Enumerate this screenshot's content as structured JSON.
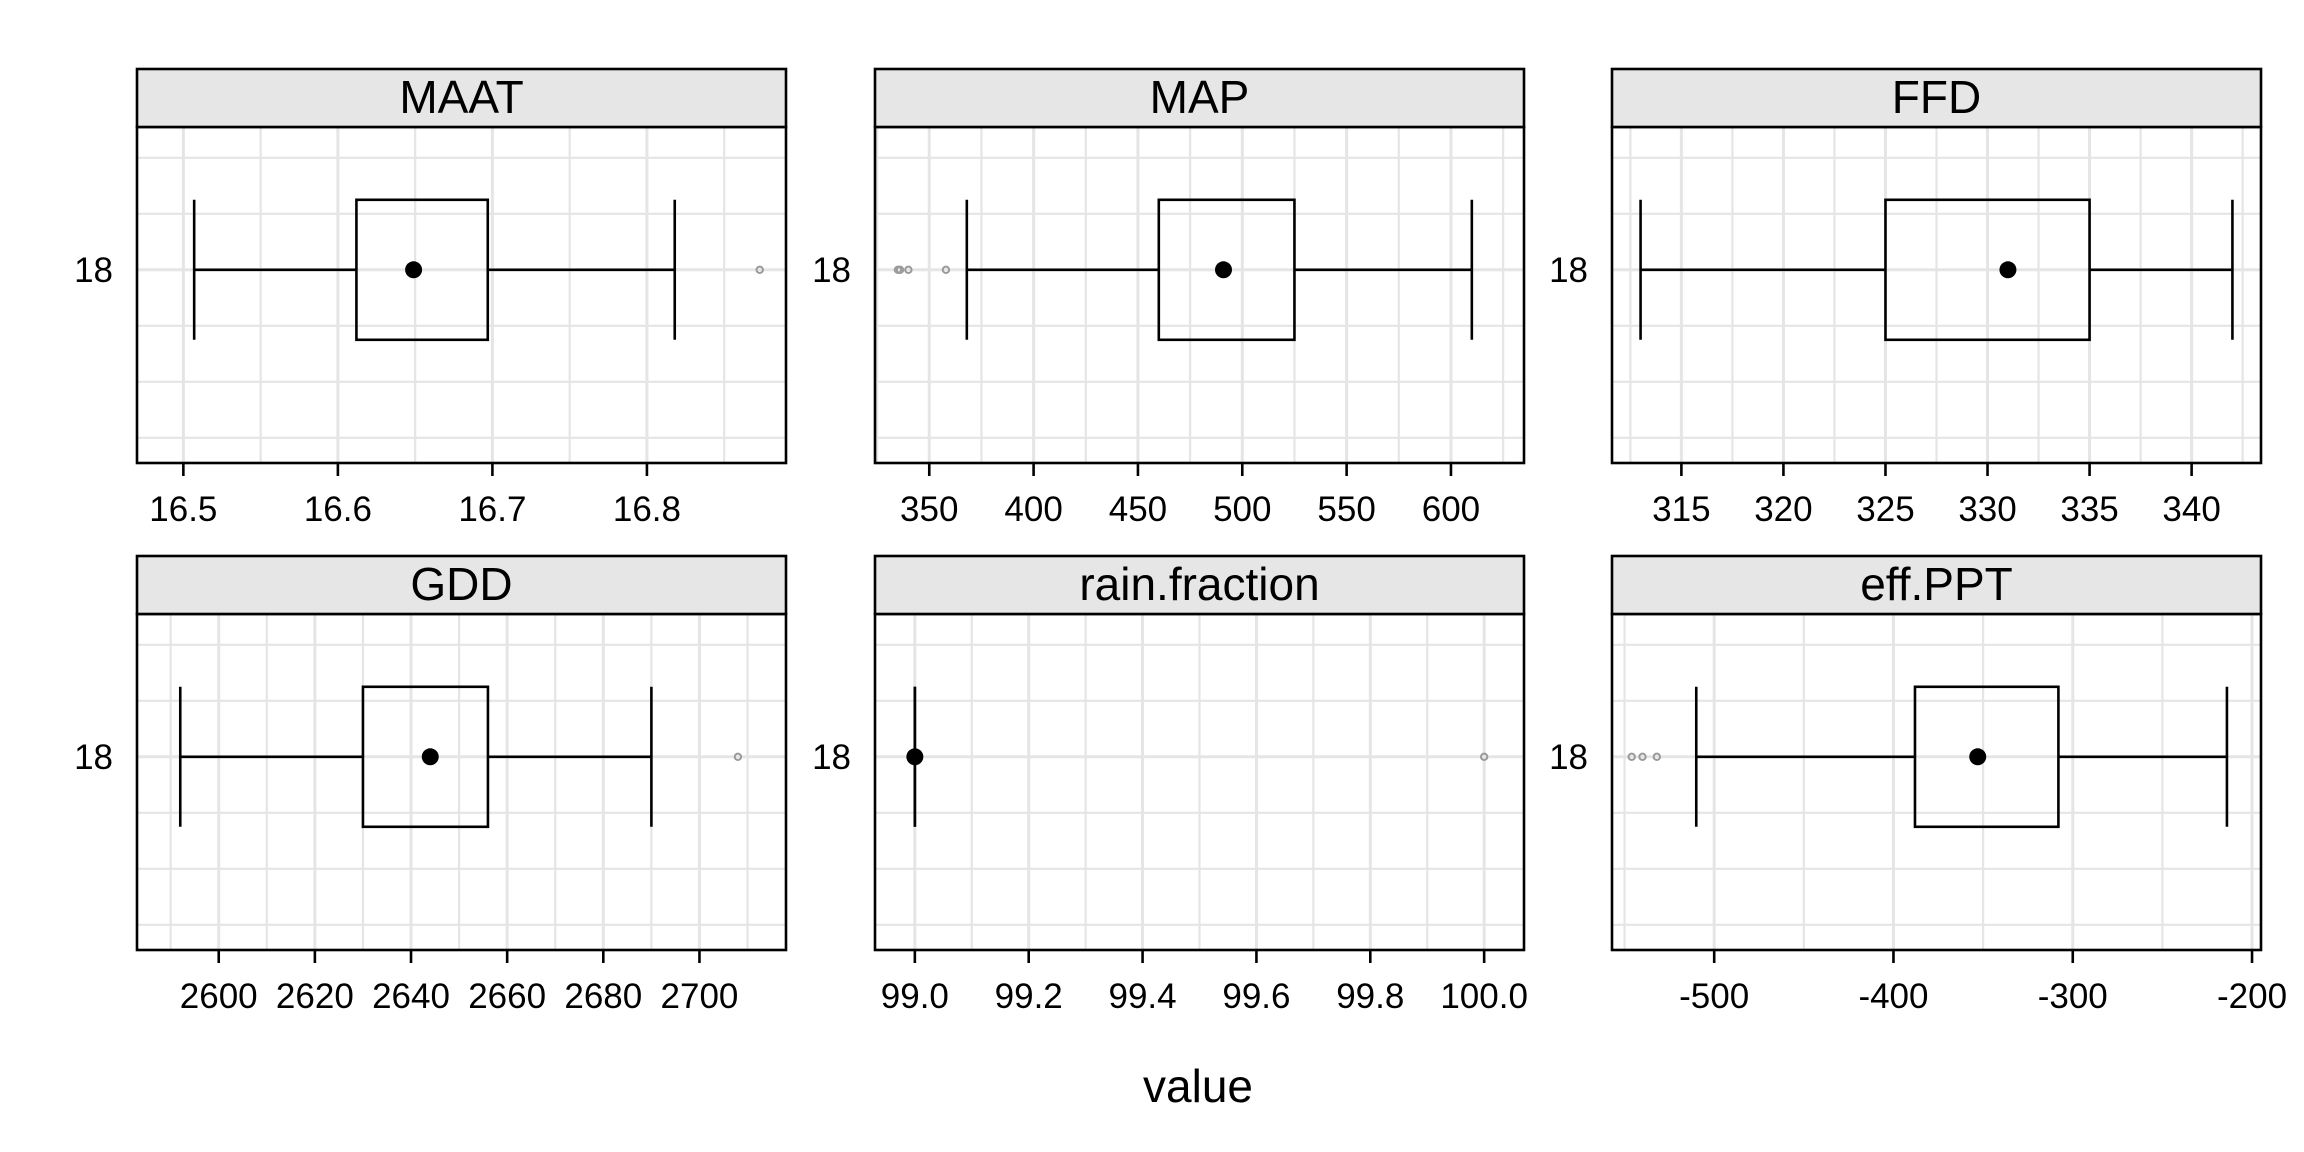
{
  "chart_data": {
    "type": "boxplot",
    "xlabel": "value",
    "category_label": "18",
    "grid": true,
    "panels": [
      {
        "name": "MAAT",
        "xlim": [
          16.47,
          16.89
        ],
        "ticks": [
          16.5,
          16.6,
          16.7,
          16.8,
          16.9
        ],
        "tick_labels": [
          "16.5",
          "16.6",
          "16.7",
          "16.8",
          ""
        ],
        "min": 16.507,
        "q1": 16.612,
        "median": 16.649,
        "q3": 16.697,
        "max": 16.818,
        "outliers": [
          16.873
        ]
      },
      {
        "name": "MAP",
        "xlim": [
          324,
          635
        ],
        "ticks": [
          350,
          400,
          450,
          500,
          550,
          600
        ],
        "tick_labels": [
          "350",
          "400",
          "450",
          "500",
          "550",
          "600"
        ],
        "min": 368,
        "q1": 460,
        "median": 491,
        "q3": 525,
        "max": 610,
        "outliers": [
          335,
          336,
          340,
          358
        ]
      },
      {
        "name": "FFD",
        "xlim": [
          311.6,
          343.4
        ],
        "ticks": [
          315,
          320,
          325,
          330,
          335,
          340
        ],
        "tick_labels": [
          "315",
          "320",
          "325",
          "330",
          "335",
          "340"
        ],
        "min": 313,
        "q1": 325,
        "median": 331,
        "q3": 335,
        "max": 342,
        "outliers": []
      },
      {
        "name": "GDD",
        "xlim": [
          2583,
          2718
        ],
        "ticks": [
          2600,
          2620,
          2640,
          2660,
          2680,
          2700
        ],
        "tick_labels": [
          "2600",
          "2620",
          "2640",
          "2660",
          "2680",
          "2700"
        ],
        "min": 2592,
        "q1": 2630,
        "median": 2644,
        "q3": 2656,
        "max": 2690,
        "outliers": [
          2708
        ]
      },
      {
        "name": "rain.fraction",
        "xlim": [
          98.93,
          100.07
        ],
        "ticks": [
          99.0,
          99.2,
          99.4,
          99.6,
          99.8,
          100.0
        ],
        "tick_labels": [
          "99.0",
          "99.2",
          "99.4",
          "99.6",
          "99.8",
          "100.0"
        ],
        "min": 99.0,
        "q1": 99.0,
        "median": 99.0,
        "q3": 99.0,
        "max": 99.0,
        "outliers": [
          100.0
        ]
      },
      {
        "name": "eff.PPT",
        "xlim": [
          -557,
          -195
        ],
        "ticks": [
          -500,
          -400,
          -300,
          -200
        ],
        "tick_labels": [
          "-500",
          "-400",
          "-300",
          "-200"
        ],
        "min": -510,
        "q1": -388,
        "median": -353,
        "q3": -308,
        "max": -214,
        "outliers": [
          -546,
          -540,
          -532
        ]
      }
    ]
  }
}
